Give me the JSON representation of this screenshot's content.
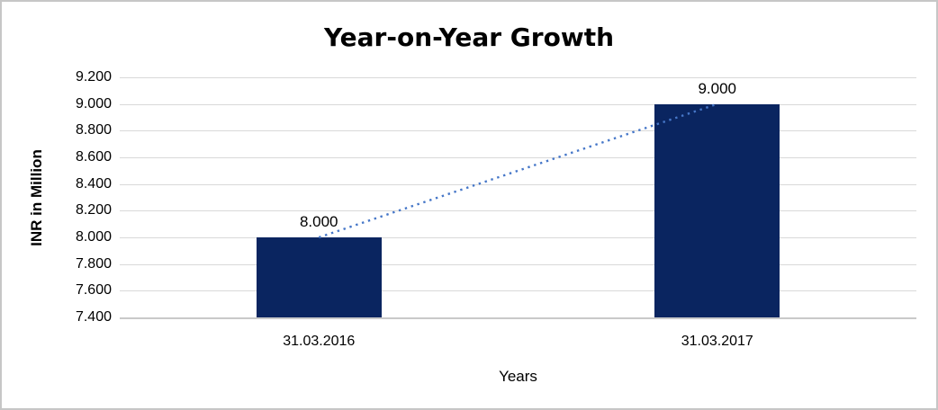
{
  "window": {
    "background": "#ffffff",
    "border_color": "#c6c6c6"
  },
  "chart_data": {
    "type": "bar",
    "title": "Year-on-Year Growth",
    "xlabel": "Years",
    "ylabel": "INR in Million",
    "categories": [
      "31.03.2016",
      "31.03.2017"
    ],
    "values": [
      8.0,
      9.0
    ],
    "value_labels": [
      "8.000",
      "9.000"
    ],
    "y_tick_labels": [
      "7.400",
      "7.600",
      "7.800",
      "8.000",
      "8.200",
      "8.400",
      "8.600",
      "8.800",
      "9.000",
      "9.200"
    ],
    "ylim": [
      7.4,
      9.2
    ],
    "y_tick_step": 0.2,
    "grid": "horizontal-major",
    "legend": "none",
    "bar_color": "#0a2560",
    "gridline_color": "#d9d9d9",
    "axisline_color": "#c9c9c9",
    "text_color": "#000000",
    "trendline": {
      "style": "dotted",
      "color": "#4677c8",
      "from_value": 8.0,
      "to_value": 9.0
    }
  }
}
